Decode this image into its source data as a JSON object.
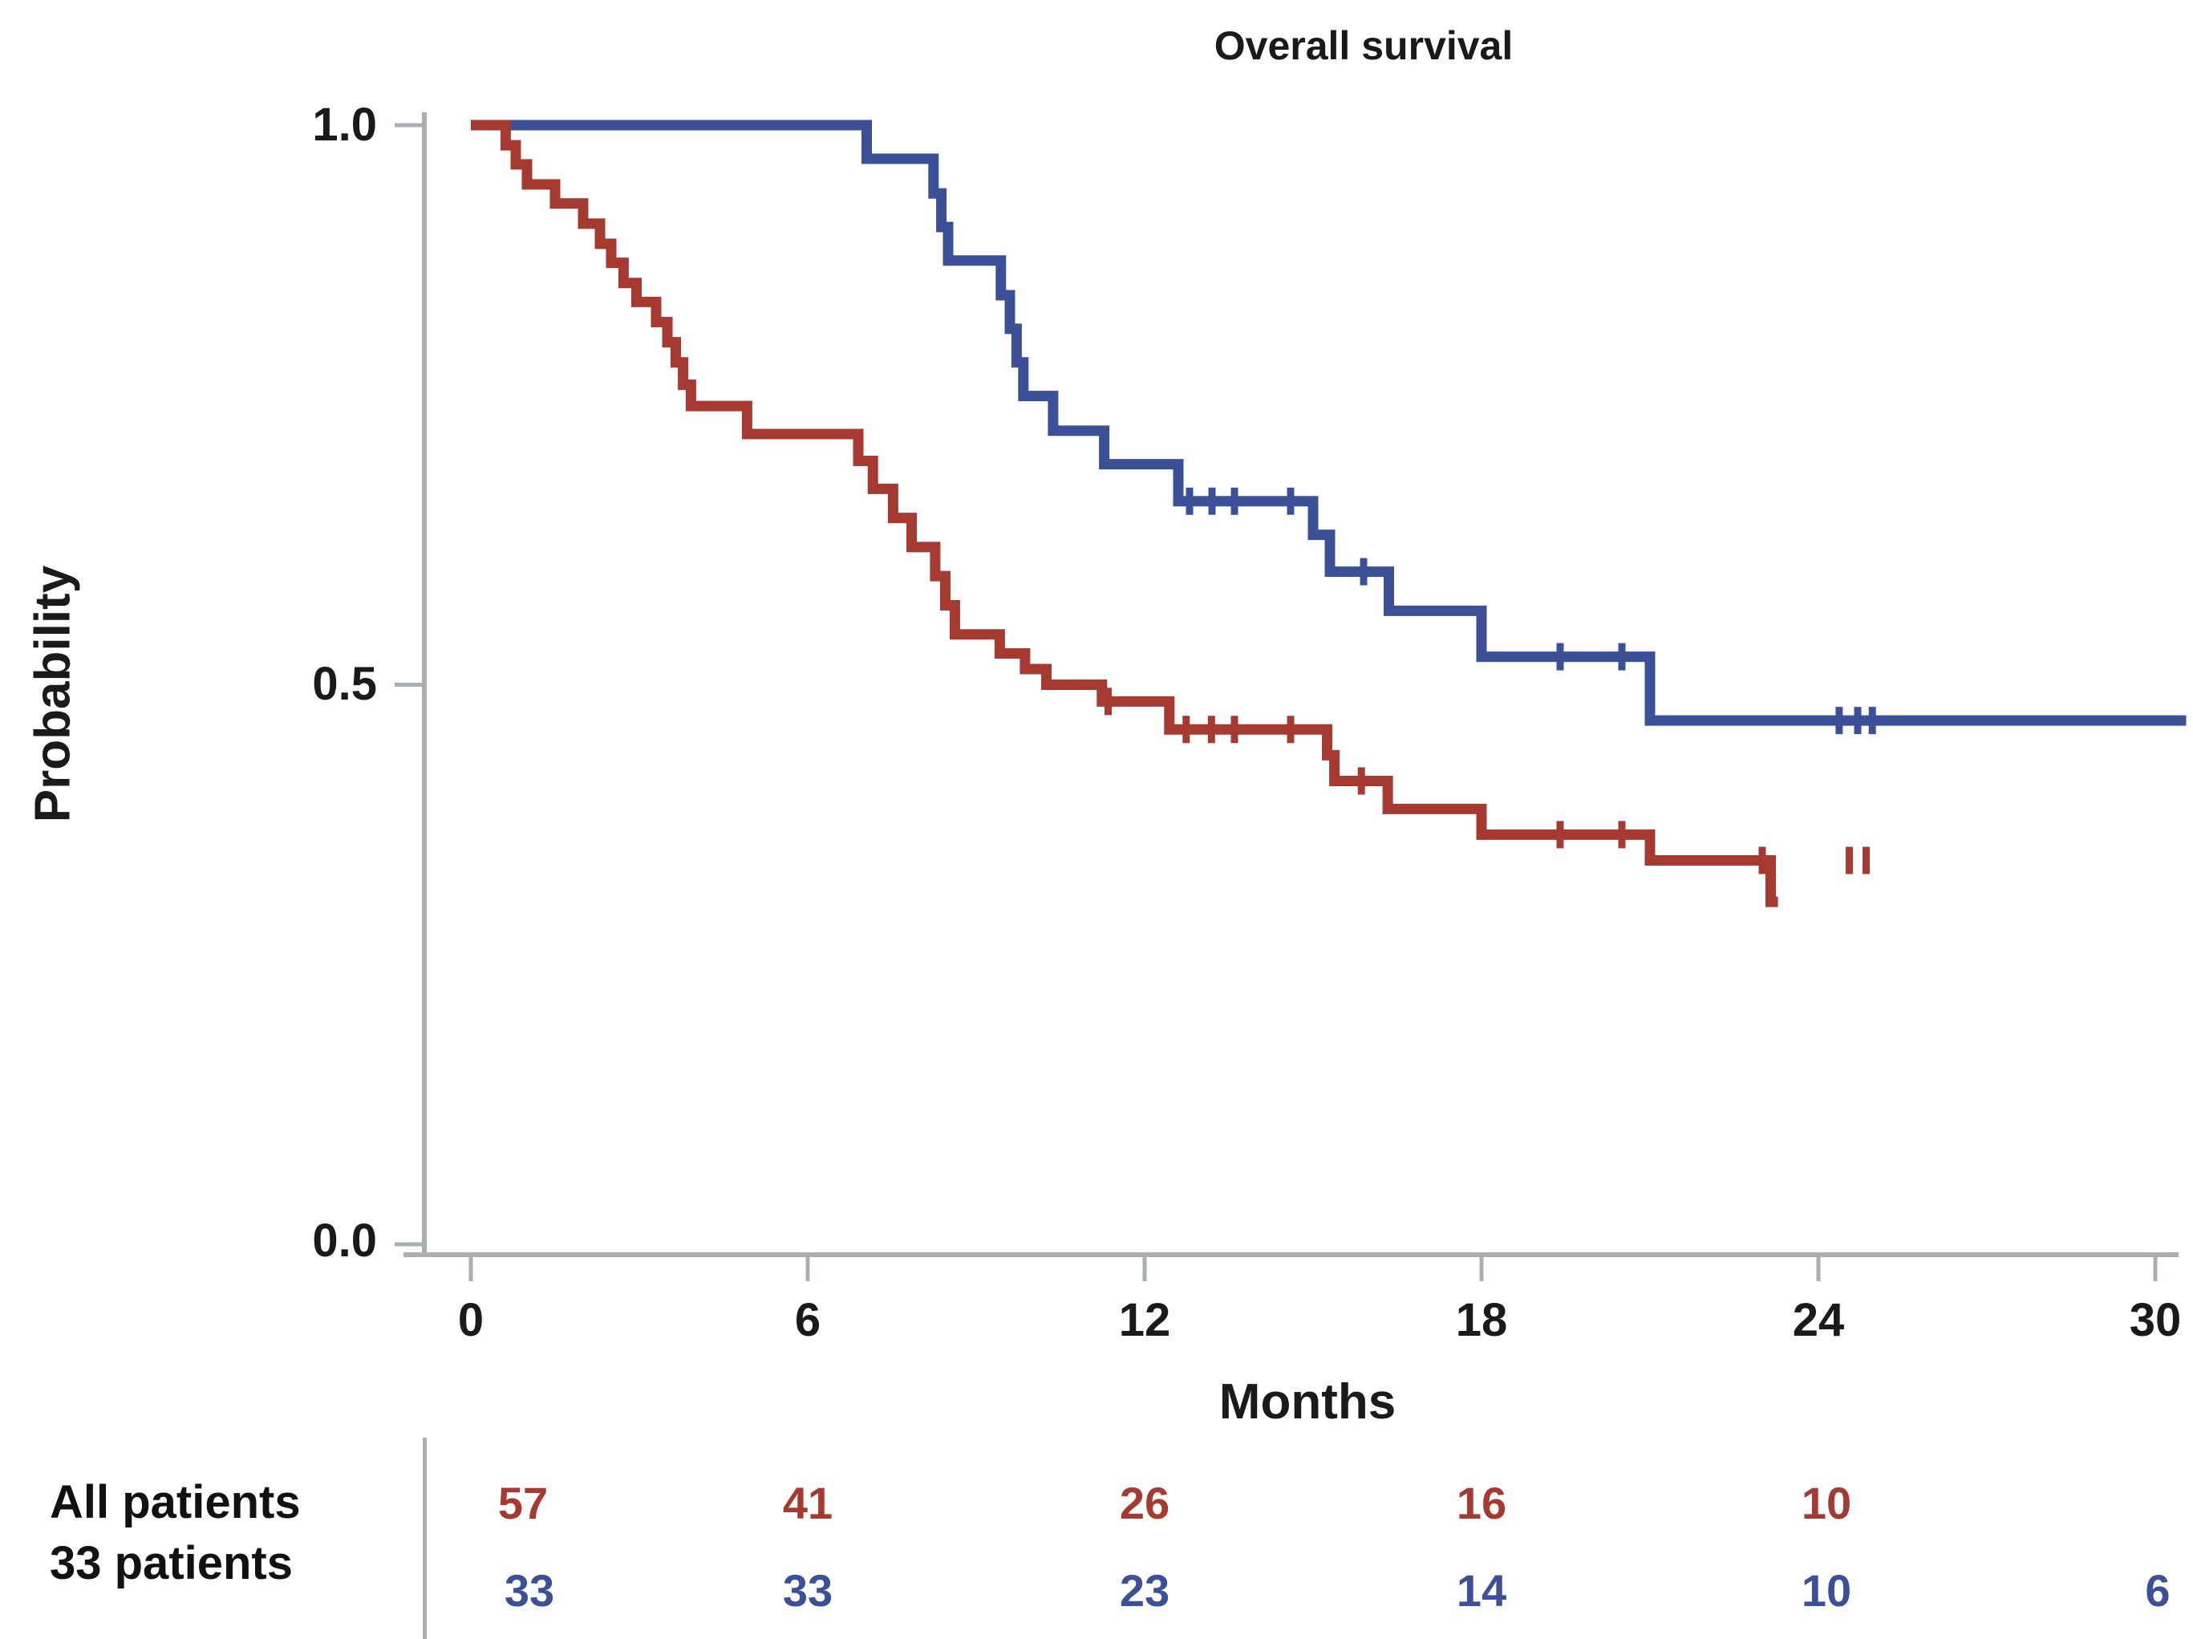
{
  "title": "Overall survival",
  "colors": {
    "red": "#A63A31",
    "blue": "#3C5097",
    "axis": "#A9B0B4",
    "text": "#1a1a1a"
  },
  "chart_data": {
    "type": "line",
    "subtype": "kaplan-meier-step-curves",
    "title": "Overall survival",
    "xlabel": "Months",
    "ylabel": "Probability",
    "xlim": [
      0,
      30.6
    ],
    "ylim": [
      0.0,
      1.0
    ],
    "x_ticks": [
      0,
      6,
      12,
      18,
      24,
      30
    ],
    "x_tick_labels": [
      "0",
      "6",
      "12",
      "18",
      "24",
      "30"
    ],
    "y_ticks": [
      1.0,
      0.5,
      0.0
    ],
    "y_tick_labels": [
      "1.0",
      "0.5",
      "0.0"
    ],
    "grid": false,
    "legend": "none (groups identified in risk table below plot)",
    "series": [
      {
        "name": "All patients",
        "color_key": "red",
        "start": [
          0,
          1.0
        ],
        "steps": [
          [
            0.62,
            0.982
          ],
          [
            0.8,
            0.965
          ],
          [
            1.0,
            0.947
          ],
          [
            1.5,
            0.93
          ],
          [
            2.0,
            0.912
          ],
          [
            2.3,
            0.894
          ],
          [
            2.5,
            0.877
          ],
          [
            2.72,
            0.859
          ],
          [
            2.95,
            0.842
          ],
          [
            3.3,
            0.824
          ],
          [
            3.5,
            0.806
          ],
          [
            3.65,
            0.788
          ],
          [
            3.78,
            0.768
          ],
          [
            3.92,
            0.749
          ],
          [
            4.92,
            0.724
          ],
          [
            6.9,
            0.7
          ],
          [
            7.16,
            0.675
          ],
          [
            7.52,
            0.649
          ],
          [
            7.85,
            0.623
          ],
          [
            8.27,
            0.597
          ],
          [
            8.45,
            0.571
          ],
          [
            8.62,
            0.545
          ],
          [
            9.42,
            0.528
          ],
          [
            9.87,
            0.514
          ],
          [
            10.25,
            0.5
          ],
          [
            11.24,
            0.485
          ],
          [
            12.44,
            0.46
          ],
          [
            15.25,
            0.437
          ],
          [
            15.38,
            0.414
          ],
          [
            16.33,
            0.389
          ],
          [
            18.0,
            0.366
          ],
          [
            21.0,
            0.343
          ],
          [
            23.15,
            0.306
          ]
        ],
        "end_month": 23.28,
        "censor_marks": [
          [
            11.35,
            0.485
          ],
          [
            12.74,
            0.46
          ],
          [
            13.19,
            0.46
          ],
          [
            13.6,
            0.46
          ],
          [
            14.6,
            0.46
          ],
          [
            15.86,
            0.414
          ],
          [
            19.4,
            0.366
          ],
          [
            20.5,
            0.366
          ],
          [
            23.0,
            0.343
          ],
          [
            24.55,
            0.343
          ],
          [
            24.85,
            0.343
          ]
        ]
      },
      {
        "name": "33 patients",
        "color_key": "blue",
        "start": [
          0,
          1.0
        ],
        "steps": [
          [
            7.05,
            0.97
          ],
          [
            8.24,
            0.939
          ],
          [
            8.38,
            0.909
          ],
          [
            8.5,
            0.879
          ],
          [
            9.44,
            0.848
          ],
          [
            9.6,
            0.818
          ],
          [
            9.72,
            0.788
          ],
          [
            9.84,
            0.758
          ],
          [
            10.37,
            0.727
          ],
          [
            11.28,
            0.697
          ],
          [
            12.6,
            0.664
          ],
          [
            15.0,
            0.634
          ],
          [
            15.3,
            0.601
          ],
          [
            16.35,
            0.566
          ],
          [
            18.0,
            0.525
          ],
          [
            21.0,
            0.468
          ]
        ],
        "end_month": 30.55,
        "censor_marks": [
          [
            12.8,
            0.664
          ],
          [
            13.2,
            0.664
          ],
          [
            13.6,
            0.664
          ],
          [
            14.6,
            0.664
          ],
          [
            15.9,
            0.601
          ],
          [
            19.4,
            0.525
          ],
          [
            20.5,
            0.525
          ],
          [
            24.37,
            0.468
          ],
          [
            24.7,
            0.468
          ],
          [
            24.96,
            0.468
          ]
        ]
      }
    ]
  },
  "risk_table": {
    "rows": [
      {
        "label": "All patients",
        "color_key": "red",
        "counts": [
          "57",
          "41",
          "26",
          "16",
          "10"
        ]
      },
      {
        "label": "33 patients",
        "color_key": "blue",
        "counts": [
          "33",
          "33",
          "23",
          "14",
          "10",
          "6"
        ]
      }
    ]
  }
}
